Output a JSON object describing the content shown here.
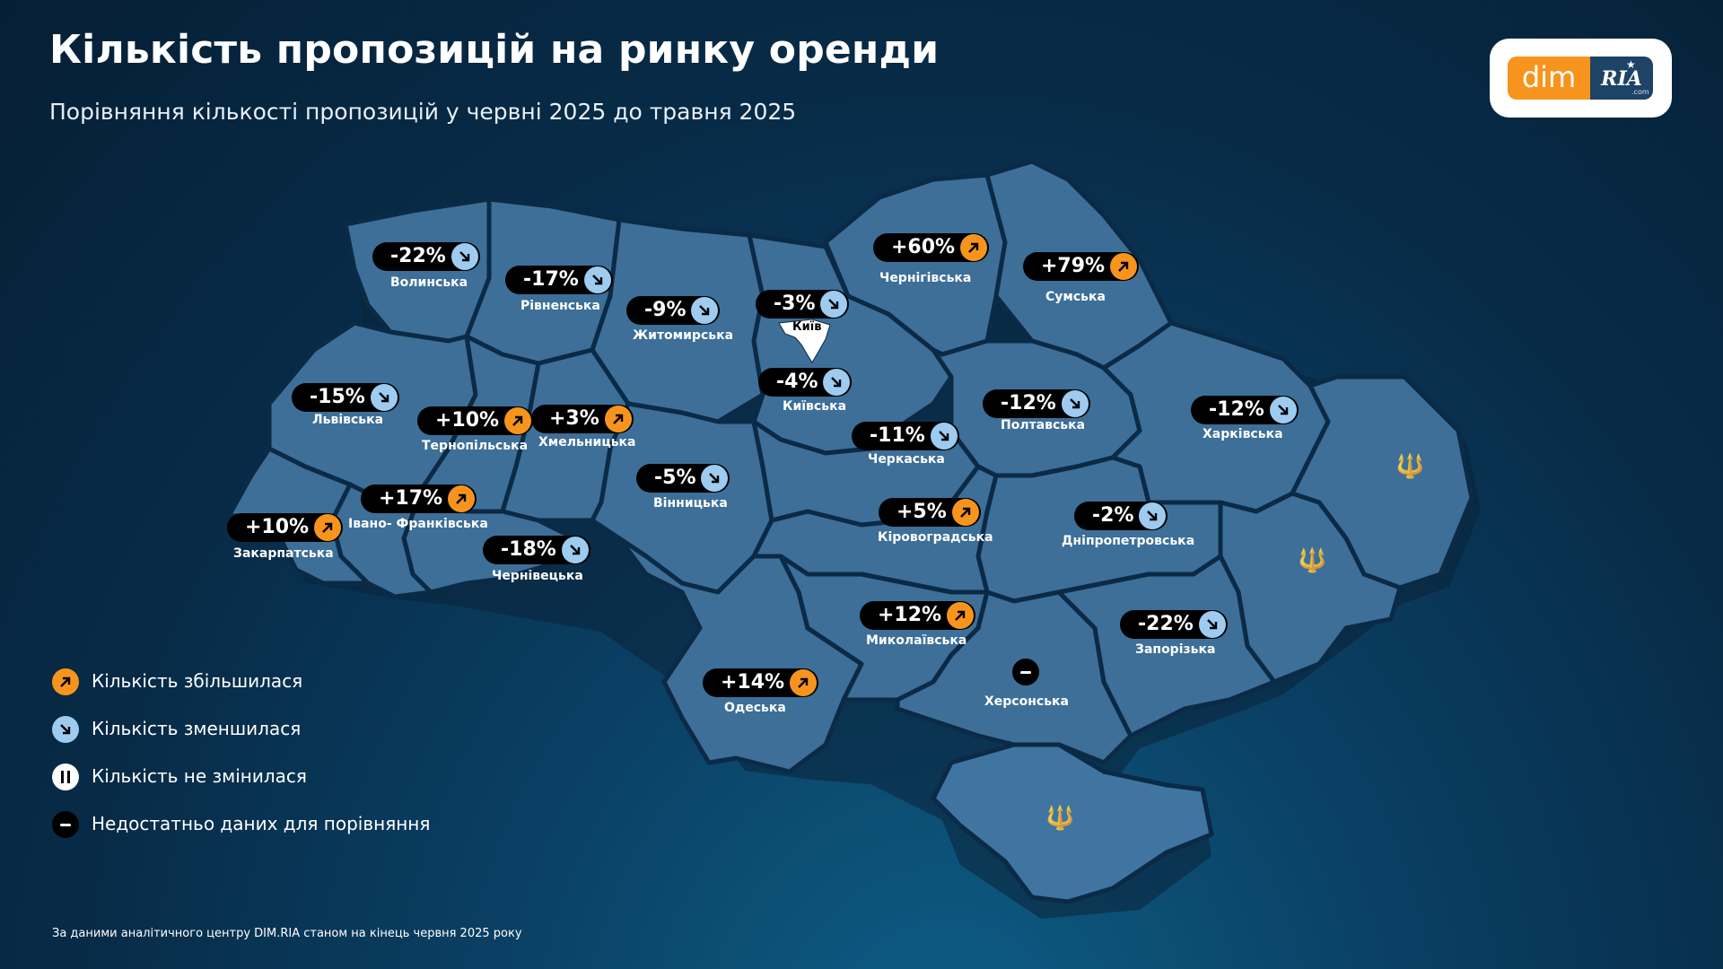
{
  "title": "Кількість пропозицій на ринку оренди",
  "subtitle": "Порівняння кількості пропозицій у червні 2025 до травня 2025",
  "logo": {
    "left": "dim",
    "right": "RIA",
    "suffix": ".com"
  },
  "colors": {
    "increase": "#f7941d",
    "decrease": "#9ecbf0",
    "region": "#3d6f98",
    "border": "#0b2a45"
  },
  "regions": [
    {
      "id": "volynska",
      "name": "Волинська",
      "value": "-22%",
      "trend": "down"
    },
    {
      "id": "rivnenska",
      "name": "Рівненська",
      "value": "-17%",
      "trend": "down"
    },
    {
      "id": "zhytomyrska",
      "name": "Житомирська",
      "value": "-9%",
      "trend": "down"
    },
    {
      "id": "kyiv-city",
      "name": "Київ",
      "value": "-3%",
      "trend": "down"
    },
    {
      "id": "chernihivska",
      "name": "Чернігівська",
      "value": "+60%",
      "trend": "up"
    },
    {
      "id": "sumska",
      "name": "Сумська",
      "value": "+79%",
      "trend": "up"
    },
    {
      "id": "lvivska",
      "name": "Львівська",
      "value": "-15%",
      "trend": "down"
    },
    {
      "id": "ternopilska",
      "name": "Тернопільська",
      "value": "+10%",
      "trend": "up"
    },
    {
      "id": "khmelnytska",
      "name": "Хмельницька",
      "value": "+3%",
      "trend": "up"
    },
    {
      "id": "kyivska",
      "name": "Київська",
      "value": "-4%",
      "trend": "down"
    },
    {
      "id": "poltavska",
      "name": "Полтавська",
      "value": "-12%",
      "trend": "down"
    },
    {
      "id": "kharkivska",
      "name": "Харківська",
      "value": "-12%",
      "trend": "down"
    },
    {
      "id": "cherkaska",
      "name": "Черкаська",
      "value": "-11%",
      "trend": "down"
    },
    {
      "id": "vinnytska",
      "name": "Вінницька",
      "value": "-5%",
      "trend": "down"
    },
    {
      "id": "ivano-frankivska",
      "name": "Івано- Франківська",
      "value": "+17%",
      "trend": "up"
    },
    {
      "id": "zakarpatska",
      "name": "Закарпатська",
      "value": "+10%",
      "trend": "up"
    },
    {
      "id": "chernivetska",
      "name": "Чернівецька",
      "value": "-18%",
      "trend": "down"
    },
    {
      "id": "kirovohradska",
      "name": "Кіровоградська",
      "value": "+5%",
      "trend": "up"
    },
    {
      "id": "dnipropetrovska",
      "name": "Дніпропетровська",
      "value": "-2%",
      "trend": "down"
    },
    {
      "id": "mykolaivska",
      "name": "Миколаївська",
      "value": "+12%",
      "trend": "up"
    },
    {
      "id": "zaporizka",
      "name": "Запорізька",
      "value": "-22%",
      "trend": "down"
    },
    {
      "id": "odeska",
      "name": "Одеська",
      "value": "+14%",
      "trend": "up"
    },
    {
      "id": "khersonska",
      "name": "Херсонська",
      "value": "",
      "trend": "no-data"
    }
  ],
  "legend": [
    {
      "type": "up",
      "label": "Кількість збільшилася"
    },
    {
      "type": "down",
      "label": "Кількість зменшилася"
    },
    {
      "type": "same",
      "label": "Кількість не змінилася"
    },
    {
      "type": "no-data",
      "label": "Недостатньо даних для порівняння"
    }
  ],
  "footer": "За даними аналітичного центру DIM.RIA станом на кінець червня 2025 року"
}
